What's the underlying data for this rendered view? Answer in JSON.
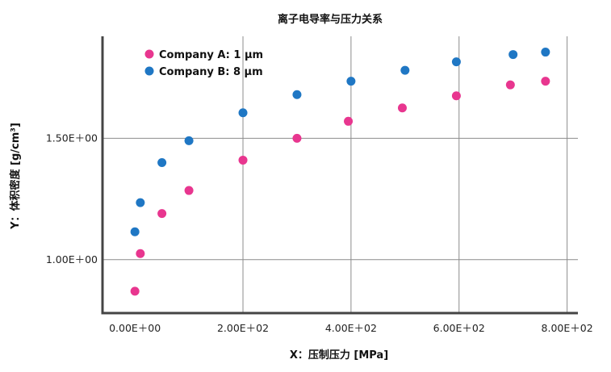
{
  "chart_data": {
    "type": "scatter",
    "title": "离子电导率与压力关系",
    "xlabel": "X：压制压力 [MPa]",
    "ylabel": "Y：体积密度 [g/cm³]",
    "xlim": [
      -60,
      820
    ],
    "ylim": [
      0.78,
      1.92
    ],
    "x_ticks": [
      0,
      200,
      400,
      600,
      800
    ],
    "x_tick_labels": [
      "0.00E＋00",
      "2.00E＋02",
      "4.00E＋02",
      "6.00E＋02",
      "8.00E＋02"
    ],
    "y_ticks": [
      1.0,
      1.5
    ],
    "y_tick_labels": [
      "1.00E＋00",
      "1.50E＋00"
    ],
    "grid": true,
    "legend_position": "top-left",
    "series": [
      {
        "name": "Company A: 1 μm",
        "color": "#e8368f",
        "x": [
          0,
          10,
          50,
          100,
          200,
          300,
          395,
          495,
          595,
          695,
          760
        ],
        "y": [
          0.87,
          1.025,
          1.19,
          1.285,
          1.41,
          1.5,
          1.57,
          1.625,
          1.675,
          1.72,
          1.735
        ]
      },
      {
        "name": "Company B: 8 μm",
        "color": "#1f77c4",
        "x": [
          0,
          10,
          50,
          100,
          200,
          300,
          400,
          500,
          595,
          700,
          760
        ],
        "y": [
          1.115,
          1.235,
          1.4,
          1.49,
          1.605,
          1.68,
          1.735,
          1.78,
          1.815,
          1.845,
          1.855
        ]
      }
    ]
  }
}
